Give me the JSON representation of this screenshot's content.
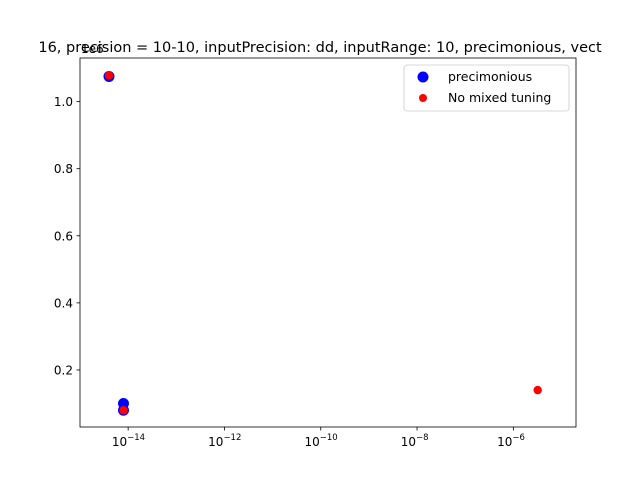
{
  "chart_data": {
    "type": "scatter",
    "title": "16, precision = 10-10, inputPrecision: dd, inputRange: 10, precimonious, vect",
    "xlabel": "",
    "ylabel": "",
    "x_scale": "log",
    "xlim": [
      1e-15,
      2e-05
    ],
    "ylim": [
      0.03,
      1.13
    ],
    "y_offset_label": "1e6",
    "x_ticks": [
      {
        "value": 1e-14,
        "base": "10",
        "exp": "−14"
      },
      {
        "value": 1e-12,
        "base": "10",
        "exp": "−12"
      },
      {
        "value": 1e-10,
        "base": "10",
        "exp": "−10"
      },
      {
        "value": 1e-08,
        "base": "10",
        "exp": "−8"
      },
      {
        "value": 1e-06,
        "base": "10",
        "exp": "−6"
      }
    ],
    "y_ticks": [
      {
        "value": 0.2,
        "label": "0.2"
      },
      {
        "value": 0.4,
        "label": "0.4"
      },
      {
        "value": 0.6,
        "label": "0.6"
      },
      {
        "value": 0.8,
        "label": "0.8"
      },
      {
        "value": 1.0,
        "label": "1.0"
      }
    ],
    "series": [
      {
        "name": "precimonious",
        "color": "#0000ff",
        "marker": "large-circle",
        "points": [
          {
            "x": 4e-15,
            "y": 1.075
          },
          {
            "x": 8e-15,
            "y": 0.1
          },
          {
            "x": 8e-15,
            "y": 0.08
          }
        ]
      },
      {
        "name": "No mixed tuning",
        "color": "#ff0000",
        "marker": "small-circle",
        "points": [
          {
            "x": 4e-15,
            "y": 1.078
          },
          {
            "x": 8e-15,
            "y": 0.08
          },
          {
            "x": 3.2e-06,
            "y": 0.14
          }
        ]
      }
    ],
    "legend": {
      "position": "top-right",
      "entries": [
        "precimonious",
        "No mixed tuning"
      ]
    },
    "grid": false
  }
}
